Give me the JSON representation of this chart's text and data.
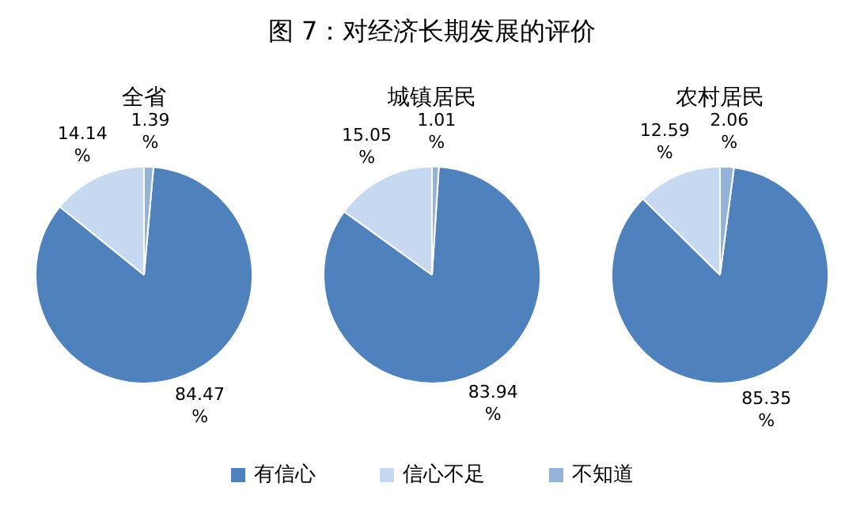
{
  "chart_data": [
    {
      "type": "pie",
      "title": "全省",
      "annotations": [
        "图 7：对经济长期发展的评价"
      ],
      "categories": [
        "有信心",
        "信心不足",
        "不知道"
      ],
      "values": [
        84.47,
        14.14,
        1.39
      ],
      "colors": [
        "#4f81bd",
        "#c6d9f0",
        "#95b3d7"
      ],
      "value_labels": [
        "84.47%",
        "14.14%",
        "1.39%"
      ],
      "legend": "bottom"
    },
    {
      "type": "pie",
      "title": "城镇居民",
      "categories": [
        null,
        null,
        null
      ],
      "values": [
        83.94,
        15.05,
        1.01
      ],
      "colors": [
        "#4f81bd",
        "#c6d9f0",
        "#95b3d7"
      ],
      "value_labels": [
        "83.94%",
        "15.05%",
        "1.01%"
      ]
    },
    {
      "type": "pie",
      "title": "农村居民",
      "categories": [
        null,
        null,
        null
      ],
      "values": [
        85.35,
        12.59,
        2.06
      ],
      "colors": [
        "#4f81bd",
        "#c6d9f0",
        "#95b3d7"
      ],
      "value_labels": [
        "85.35%",
        "12.59%",
        "2.06%"
      ]
    }
  ]
}
